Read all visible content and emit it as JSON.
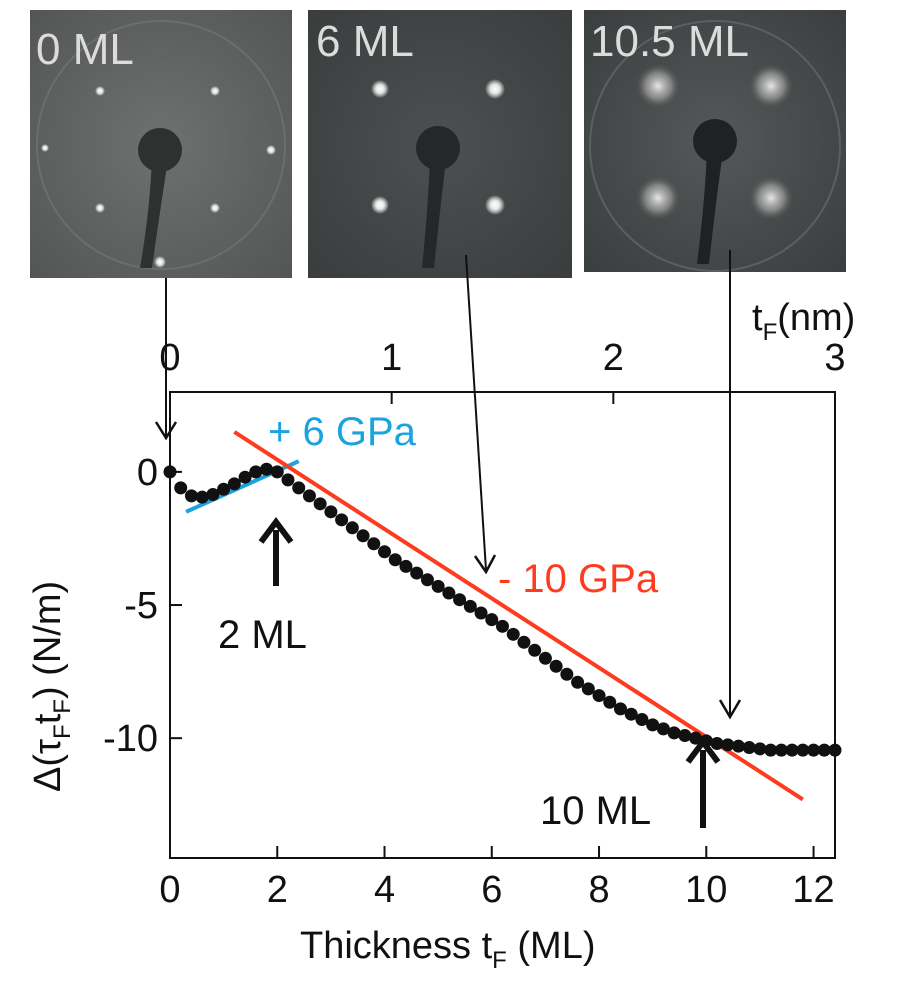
{
  "panels": [
    {
      "label": "0 ML",
      "pattern": "square-corners"
    },
    {
      "label": "6 ML",
      "pattern": "square-inner"
    },
    {
      "label": "10.5 ML",
      "pattern": "diffuse-square"
    }
  ],
  "chart_data": {
    "type": "scatter",
    "xlabel": "Thickness t",
    "xlabel_sub": "F",
    "xlabel_unit": " (ML)",
    "ylabel_parts": {
      "prefix": "Δ(τ",
      "sub1": "F",
      "mid": "t",
      "sub2": "F",
      "suffix": ")  (N/m)"
    },
    "top_axis_label": "t",
    "top_axis_label_sub": "F",
    "top_axis_unit": "(nm)",
    "xlim": [
      0,
      12.4
    ],
    "ylim": [
      -14.5,
      3
    ],
    "top_xlim_nm": [
      0,
      3
    ],
    "xticks": [
      0,
      2,
      4,
      6,
      8,
      10,
      12
    ],
    "yticks": [
      0,
      -5,
      -10
    ],
    "top_ticks": [
      0,
      1,
      2,
      3
    ],
    "marker_color": "#111111",
    "series": [
      {
        "x": [
          0,
          0.2,
          0.4,
          0.6,
          0.8,
          1.0,
          1.2,
          1.4,
          1.6,
          1.8,
          2.0,
          2.2,
          2.4,
          2.6,
          2.8,
          3.0,
          3.2,
          3.4,
          3.6,
          3.8,
          4.0,
          4.2,
          4.4,
          4.6,
          4.8,
          5.0,
          5.2,
          5.4,
          5.6,
          5.8,
          6.0,
          6.2,
          6.4,
          6.6,
          6.8,
          7.0,
          7.2,
          7.4,
          7.6,
          7.8,
          8.0,
          8.2,
          8.4,
          8.6,
          8.8,
          9.0,
          9.2,
          9.4,
          9.6,
          9.8,
          10.0,
          10.2,
          10.4,
          10.6,
          10.8,
          11.0,
          11.2,
          11.4,
          11.6,
          11.8,
          12.0,
          12.2,
          12.4
        ],
        "y": [
          0.0,
          -0.6,
          -0.9,
          -0.95,
          -0.85,
          -0.65,
          -0.45,
          -0.2,
          0.0,
          0.1,
          0.0,
          -0.3,
          -0.6,
          -0.9,
          -1.2,
          -1.5,
          -1.8,
          -2.1,
          -2.4,
          -2.7,
          -3.0,
          -3.3,
          -3.55,
          -3.8,
          -4.05,
          -4.3,
          -4.55,
          -4.8,
          -5.05,
          -5.3,
          -5.55,
          -5.8,
          -6.1,
          -6.4,
          -6.7,
          -7.0,
          -7.3,
          -7.6,
          -7.9,
          -8.15,
          -8.4,
          -8.65,
          -8.9,
          -9.1,
          -9.3,
          -9.5,
          -9.65,
          -9.8,
          -9.9,
          -10.0,
          -10.1,
          -10.2,
          -10.25,
          -10.3,
          -10.35,
          -10.4,
          -10.45,
          -10.45,
          -10.45,
          -10.45,
          -10.45,
          -10.45,
          -10.45
        ]
      }
    ],
    "fit_lines": [
      {
        "label": "+ 6 GPa",
        "color": "#1ba3e0",
        "x": [
          0.3,
          2.4
        ],
        "y": [
          -1.5,
          0.4
        ]
      },
      {
        "label": "- 10 GPa",
        "color": "#ff3b1f",
        "x": [
          1.2,
          11.8
        ],
        "y": [
          1.5,
          -12.3
        ]
      }
    ],
    "annotations": [
      {
        "text": "2 ML",
        "x": 2,
        "y": -2
      },
      {
        "text": "10 ML",
        "x": 10,
        "y": -12
      }
    ]
  }
}
